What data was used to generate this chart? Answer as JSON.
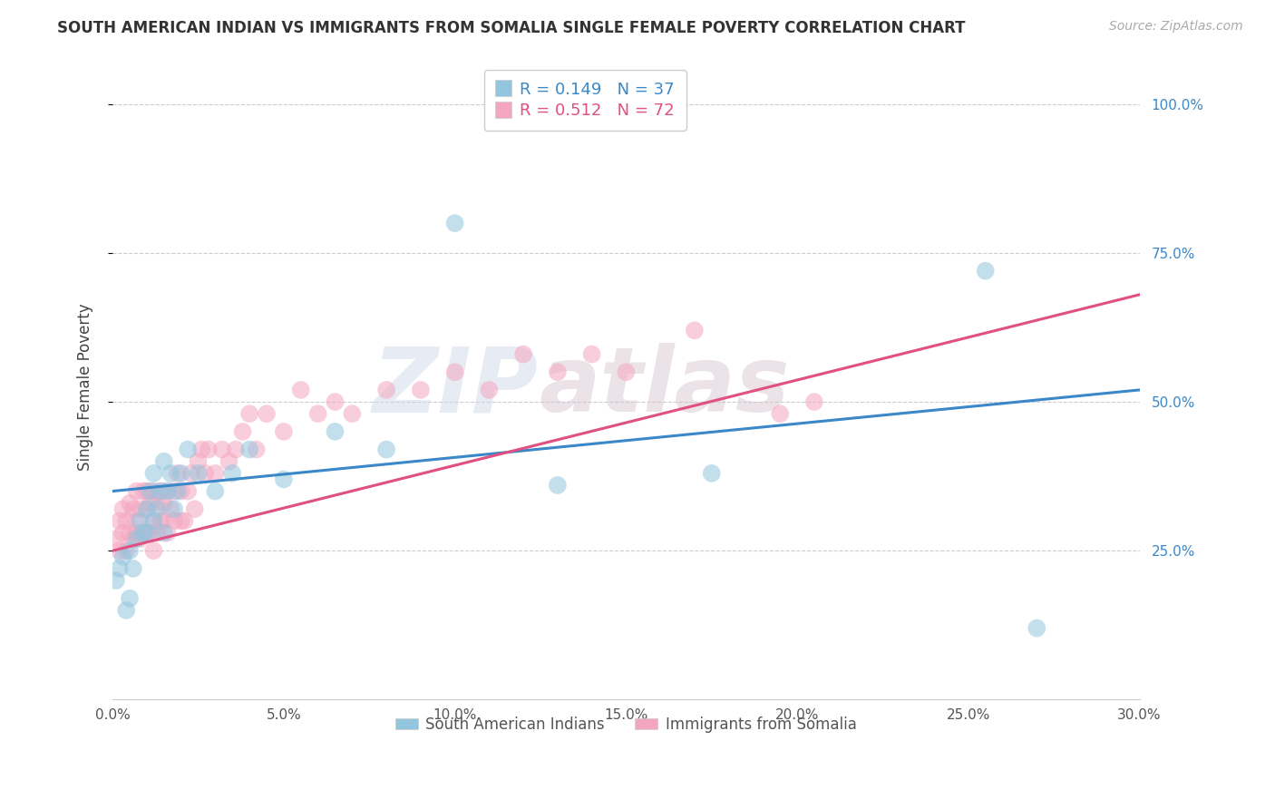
{
  "title": "SOUTH AMERICAN INDIAN VS IMMIGRANTS FROM SOMALIA SINGLE FEMALE POVERTY CORRELATION CHART",
  "source": "Source: ZipAtlas.com",
  "ylabel": "Single Female Poverty",
  "xlim": [
    0.0,
    0.3
  ],
  "ylim": [
    0.0,
    1.05
  ],
  "xtick_labels": [
    "0.0%",
    "5.0%",
    "10.0%",
    "15.0%",
    "20.0%",
    "25.0%",
    "30.0%"
  ],
  "xtick_vals": [
    0.0,
    0.05,
    0.1,
    0.15,
    0.2,
    0.25,
    0.3
  ],
  "ytick_labels": [
    "25.0%",
    "50.0%",
    "75.0%",
    "100.0%"
  ],
  "ytick_vals": [
    0.25,
    0.5,
    0.75,
    1.0
  ],
  "R_blue": 0.149,
  "N_blue": 37,
  "R_pink": 0.512,
  "N_pink": 72,
  "color_blue": "#92c5de",
  "color_pink": "#f4a6c0",
  "trendline_blue": "#3a88c8",
  "trendline_pink": "#e05080",
  "legend_label_blue": "South American Indians",
  "legend_label_pink": "Immigrants from Somalia",
  "watermark_text": "ZIP",
  "watermark_text2": "atlas",
  "blue_x": [
    0.001,
    0.002,
    0.003,
    0.004,
    0.005,
    0.005,
    0.006,
    0.007,
    0.008,
    0.009,
    0.01,
    0.01,
    0.011,
    0.012,
    0.012,
    0.013,
    0.014,
    0.015,
    0.015,
    0.016,
    0.017,
    0.018,
    0.019,
    0.02,
    0.022,
    0.025,
    0.03,
    0.035,
    0.04,
    0.05,
    0.065,
    0.08,
    0.1,
    0.13,
    0.175,
    0.255,
    0.27
  ],
  "blue_y": [
    0.2,
    0.22,
    0.24,
    0.15,
    0.17,
    0.25,
    0.22,
    0.27,
    0.3,
    0.28,
    0.32,
    0.28,
    0.35,
    0.3,
    0.38,
    0.32,
    0.35,
    0.28,
    0.4,
    0.35,
    0.38,
    0.32,
    0.35,
    0.38,
    0.42,
    0.38,
    0.35,
    0.38,
    0.42,
    0.37,
    0.45,
    0.42,
    0.8,
    0.36,
    0.38,
    0.72,
    0.12
  ],
  "pink_x": [
    0.001,
    0.002,
    0.002,
    0.003,
    0.003,
    0.004,
    0.004,
    0.005,
    0.005,
    0.006,
    0.006,
    0.007,
    0.007,
    0.007,
    0.008,
    0.008,
    0.009,
    0.009,
    0.01,
    0.01,
    0.01,
    0.011,
    0.011,
    0.012,
    0.012,
    0.012,
    0.013,
    0.013,
    0.014,
    0.014,
    0.015,
    0.015,
    0.016,
    0.016,
    0.017,
    0.018,
    0.018,
    0.019,
    0.02,
    0.02,
    0.021,
    0.022,
    0.023,
    0.024,
    0.025,
    0.026,
    0.027,
    0.028,
    0.03,
    0.032,
    0.034,
    0.036,
    0.038,
    0.04,
    0.042,
    0.045,
    0.05,
    0.055,
    0.06,
    0.065,
    0.07,
    0.08,
    0.09,
    0.1,
    0.11,
    0.12,
    0.13,
    0.14,
    0.15,
    0.17,
    0.195,
    0.205
  ],
  "pink_y": [
    0.27,
    0.25,
    0.3,
    0.28,
    0.32,
    0.25,
    0.3,
    0.28,
    0.33,
    0.27,
    0.32,
    0.28,
    0.3,
    0.35,
    0.27,
    0.32,
    0.28,
    0.35,
    0.28,
    0.32,
    0.35,
    0.28,
    0.33,
    0.3,
    0.25,
    0.35,
    0.28,
    0.33,
    0.3,
    0.35,
    0.3,
    0.33,
    0.28,
    0.35,
    0.32,
    0.35,
    0.3,
    0.38,
    0.3,
    0.35,
    0.3,
    0.35,
    0.38,
    0.32,
    0.4,
    0.42,
    0.38,
    0.42,
    0.38,
    0.42,
    0.4,
    0.42,
    0.45,
    0.48,
    0.42,
    0.48,
    0.45,
    0.52,
    0.48,
    0.5,
    0.48,
    0.52,
    0.52,
    0.55,
    0.52,
    0.58,
    0.55,
    0.58,
    0.55,
    0.62,
    0.48,
    0.5
  ]
}
